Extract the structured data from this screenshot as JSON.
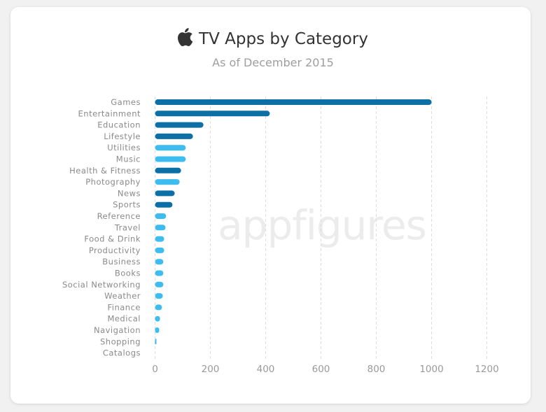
{
  "chart_data": {
    "type": "bar",
    "orientation": "horizontal",
    "title": "TV Apps by Category",
    "subtitle": "As of December 2015",
    "watermark": "appfigures",
    "title_icon": "apple-logo-icon",
    "categories": [
      "Games",
      "Entertainment",
      "Education",
      "Lifestyle",
      "Utilities",
      "Music",
      "Health & Fitness",
      "Photography",
      "News",
      "Sports",
      "Reference",
      "Travel",
      "Food & Drink",
      "Productivity",
      "Business",
      "Books",
      "Social Networking",
      "Weather",
      "Finance",
      "Medical",
      "Navigation",
      "Shopping",
      "Catalogs"
    ],
    "values": [
      1000,
      415,
      175,
      137,
      111,
      111,
      94,
      89,
      71,
      63,
      40,
      38,
      33,
      33,
      30,
      30,
      30,
      28,
      25,
      18,
      15,
      3,
      0
    ],
    "highlight": [
      true,
      true,
      true,
      true,
      false,
      false,
      true,
      false,
      true,
      true,
      false,
      false,
      false,
      false,
      false,
      false,
      false,
      false,
      false,
      false,
      false,
      false,
      false
    ],
    "colors": {
      "dark": "#0c6fa6",
      "light": "#3dbcef",
      "grid": "#dddddd"
    },
    "xlim": [
      0,
      1200
    ],
    "xticks": [
      0,
      200,
      400,
      600,
      800,
      1000,
      1200
    ],
    "grid": true,
    "xlabel": "",
    "ylabel": ""
  }
}
